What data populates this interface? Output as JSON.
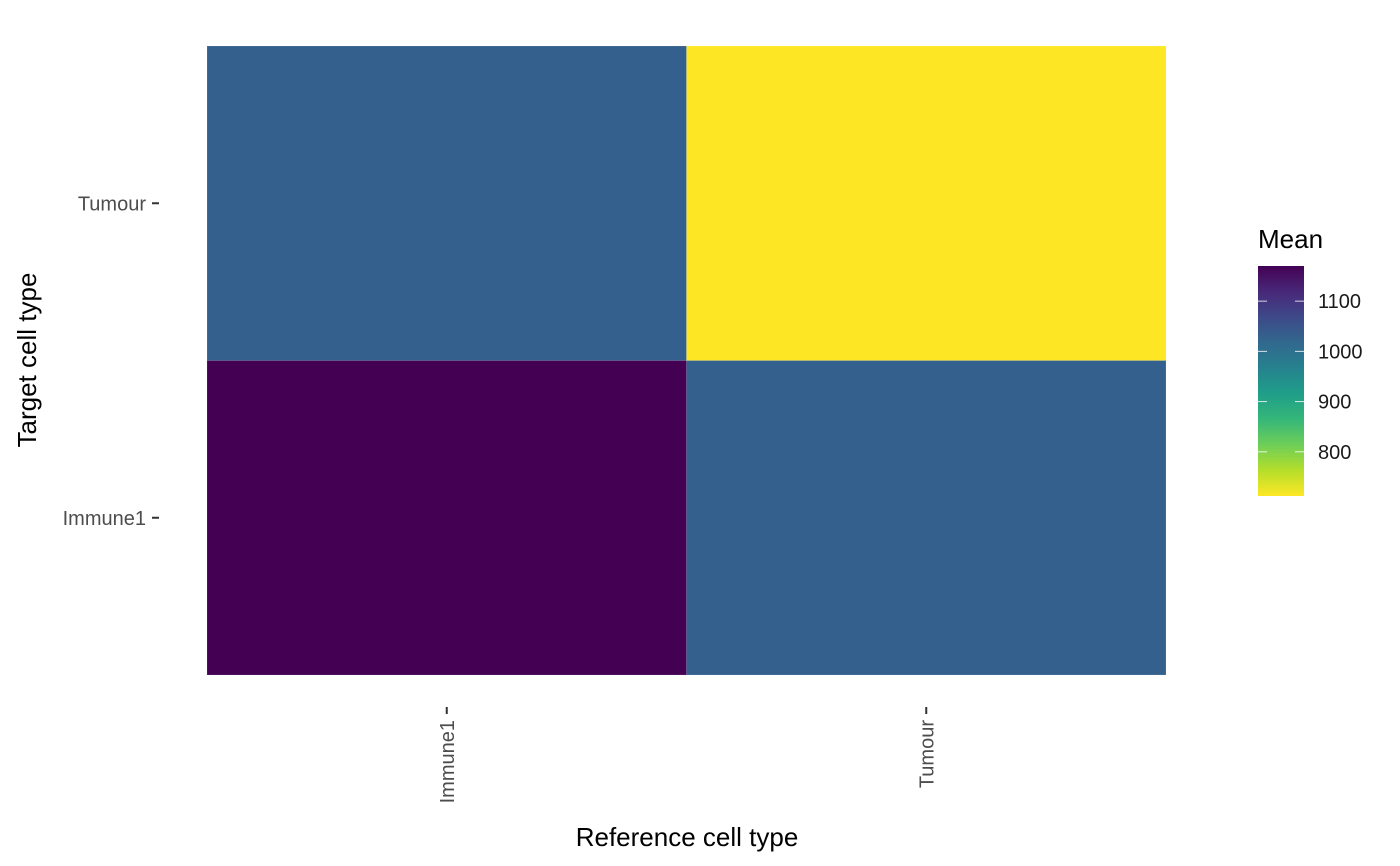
{
  "chart_data": {
    "type": "heatmap",
    "title": "",
    "xlabel": "Reference cell type",
    "ylabel": "Target cell type",
    "x_categories": [
      "Immune1",
      "Tumour"
    ],
    "y_categories": [
      "Immune1",
      "Tumour"
    ],
    "cells": [
      {
        "x": "Immune1",
        "y": "Immune1",
        "value": 1170
      },
      {
        "x": "Tumour",
        "y": "Immune1",
        "value": 1030
      },
      {
        "x": "Immune1",
        "y": "Tumour",
        "value": 1030
      },
      {
        "x": "Tumour",
        "y": "Tumour",
        "value": 712
      }
    ],
    "legend": {
      "title": "Mean",
      "range": [
        712,
        1170
      ],
      "ticks": [
        800,
        900,
        1000,
        1100
      ],
      "tick_labels": [
        "800",
        "900",
        "1000",
        "1100"
      ],
      "position": "right"
    },
    "colormap": {
      "name": "viridis",
      "stops": [
        "#fde725",
        "#b5de2b",
        "#6ece58",
        "#35b779",
        "#1f9e89",
        "#26828e",
        "#31688e",
        "#3e4989",
        "#482878",
        "#440154"
      ]
    }
  }
}
